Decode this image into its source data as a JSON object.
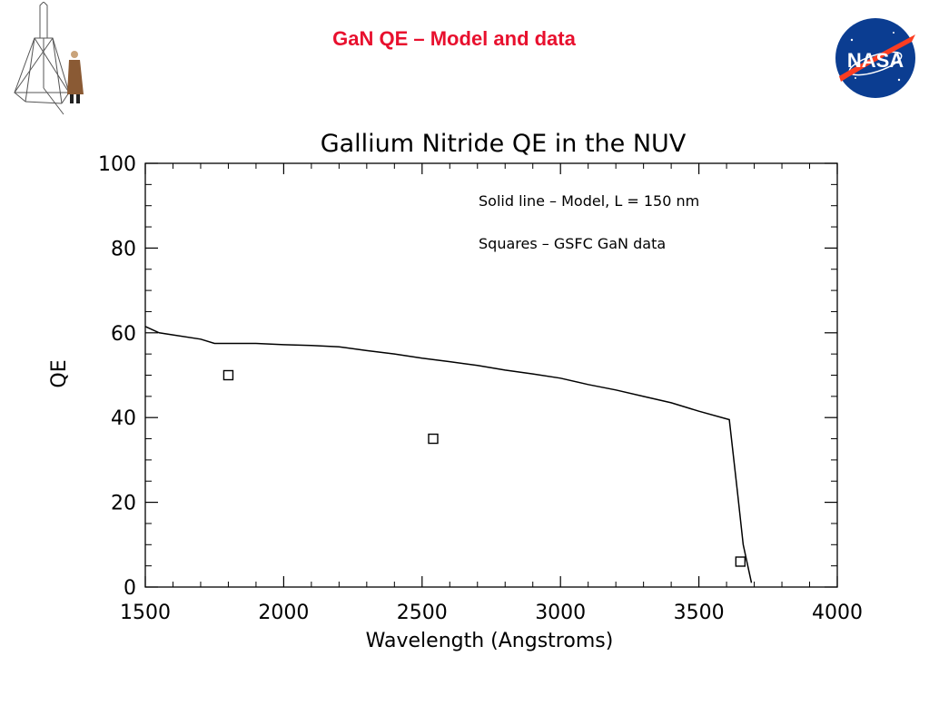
{
  "slide": {
    "title": "GaN QE – Model and data",
    "title_color": "#e8102e",
    "left_logo": "goddard-rocket-icon",
    "right_logo": "nasa-meatball-icon",
    "nasa_logo_text": "NASA"
  },
  "chart_data": {
    "type": "line",
    "title": "Gallium Nitride QE in the NUV",
    "xlabel": "Wavelength (Angstroms)",
    "ylabel": "QE",
    "xlim": [
      1500,
      4000
    ],
    "ylim": [
      0,
      100
    ],
    "x_ticks": [
      1500,
      2000,
      2500,
      3000,
      3500,
      4000
    ],
    "y_ticks": [
      0,
      20,
      40,
      60,
      80,
      100
    ],
    "grid": false,
    "annotations": [
      "Solid line – Model, L = 150 nm",
      "Squares – GSFC GaN data"
    ],
    "series": [
      {
        "style": "solid-line",
        "x": [
          1500,
          1550,
          1600,
          1700,
          1750,
          1800,
          1900,
          2000,
          2100,
          2200,
          2300,
          2400,
          2500,
          2600,
          2700,
          2800,
          2900,
          3000,
          3100,
          3200,
          3300,
          3400,
          3500,
          3610,
          3640,
          3660,
          3690
        ],
        "y": [
          61.5,
          60,
          59.5,
          58.5,
          57.5,
          57.5,
          57.5,
          57.2,
          57,
          56.7,
          55.8,
          55,
          54,
          53.2,
          52.3,
          51.2,
          50.3,
          49.3,
          47.8,
          46.5,
          45,
          43.5,
          41.5,
          39.5,
          22,
          10,
          1
        ]
      },
      {
        "style": "square-markers",
        "x": [
          1800,
          2540,
          3650
        ],
        "y": [
          50,
          35,
          6
        ]
      }
    ]
  }
}
